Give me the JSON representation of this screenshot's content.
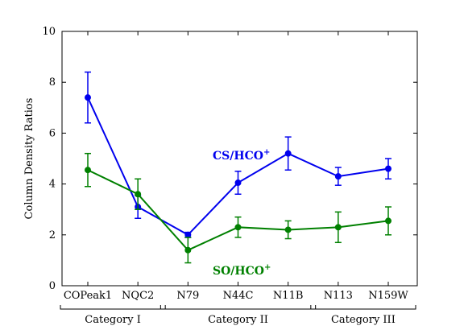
{
  "chart_data": {
    "type": "line",
    "title": "",
    "xlabel": "",
    "ylabel": "Column Density Ratios",
    "ylim": [
      0,
      10
    ],
    "yticks": [
      0,
      2,
      4,
      6,
      8,
      10
    ],
    "grid": false,
    "categories": [
      "COPeak1",
      "NQC2",
      "N79",
      "N44C",
      "N11B",
      "N113",
      "N159W"
    ],
    "groups": [
      {
        "label": "Category I",
        "members": [
          "COPeak1",
          "NQC2"
        ]
      },
      {
        "label": "Category II",
        "members": [
          "N79",
          "N44C",
          "N11B"
        ]
      },
      {
        "label": "Category III",
        "members": [
          "N113",
          "N159W"
        ]
      }
    ],
    "series": [
      {
        "name_main": "CS/HCO",
        "name_sup": "+",
        "color": "#0000ee",
        "values": [
          7.4,
          3.1,
          2.0,
          4.05,
          5.2,
          4.3,
          4.6
        ],
        "err": [
          1.0,
          0.45,
          0.1,
          0.45,
          0.65,
          0.35,
          0.4
        ]
      },
      {
        "name_main": "SO/HCO",
        "name_sup": "+",
        "color": "#008000",
        "values": [
          4.55,
          3.6,
          1.4,
          2.3,
          2.2,
          2.3,
          2.55
        ],
        "err": [
          0.65,
          0.6,
          0.5,
          0.4,
          0.35,
          0.6,
          0.55
        ]
      }
    ]
  }
}
